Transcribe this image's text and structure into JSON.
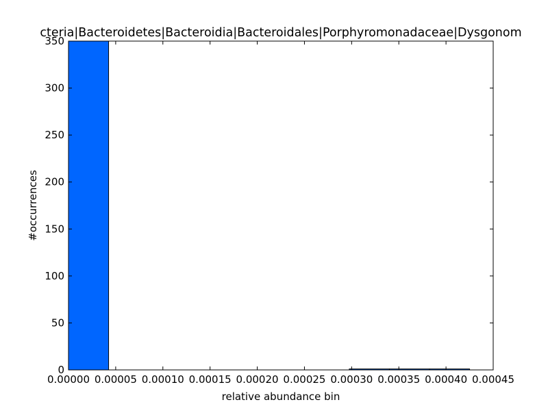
{
  "chart_data": {
    "type": "bar",
    "title": "cteria|Bacteroidetes|Bacteroidia|Bacteroidales|Porphyromonadaceae|Dysgonom",
    "xlabel": "relative abundance bin",
    "ylabel": "#occurrences",
    "xlim": [
      0,
      0.00045
    ],
    "ylim": [
      0,
      350
    ],
    "x_ticks": [
      0.0,
      5e-05,
      0.0001,
      0.00015,
      0.0002,
      0.00025,
      0.0003,
      0.00035,
      0.0004,
      0.00045
    ],
    "x_tick_labels": [
      "0.00000",
      "0.00005",
      "0.00010",
      "0.00015",
      "0.00020",
      "0.00025",
      "0.00030",
      "0.00035",
      "0.00040",
      "0.00045"
    ],
    "y_ticks": [
      0,
      50,
      100,
      150,
      200,
      250,
      300,
      350
    ],
    "y_tick_labels": [
      "0",
      "50",
      "100",
      "150",
      "200",
      "250",
      "300",
      "350"
    ],
    "bins": [
      {
        "x0": 0.0,
        "x1": 4.25e-05,
        "count": 350
      },
      {
        "x0": 4.25e-05,
        "x1": 8.5e-05,
        "count": 0
      },
      {
        "x0": 8.5e-05,
        "x1": 0.0001275,
        "count": 0
      },
      {
        "x0": 0.0001275,
        "x1": 0.00017,
        "count": 0
      },
      {
        "x0": 0.00017,
        "x1": 0.0002125,
        "count": 0
      },
      {
        "x0": 0.0002125,
        "x1": 0.000255,
        "count": 0
      },
      {
        "x0": 0.000255,
        "x1": 0.0002975,
        "count": 0
      },
      {
        "x0": 0.0002975,
        "x1": 0.00034,
        "count": 1
      },
      {
        "x0": 0.00034,
        "x1": 0.0003825,
        "count": 1
      },
      {
        "x0": 0.0003825,
        "x1": 0.000425,
        "count": 1
      }
    ],
    "bar_color": "#0066ff",
    "grid": false,
    "legend": "none"
  }
}
